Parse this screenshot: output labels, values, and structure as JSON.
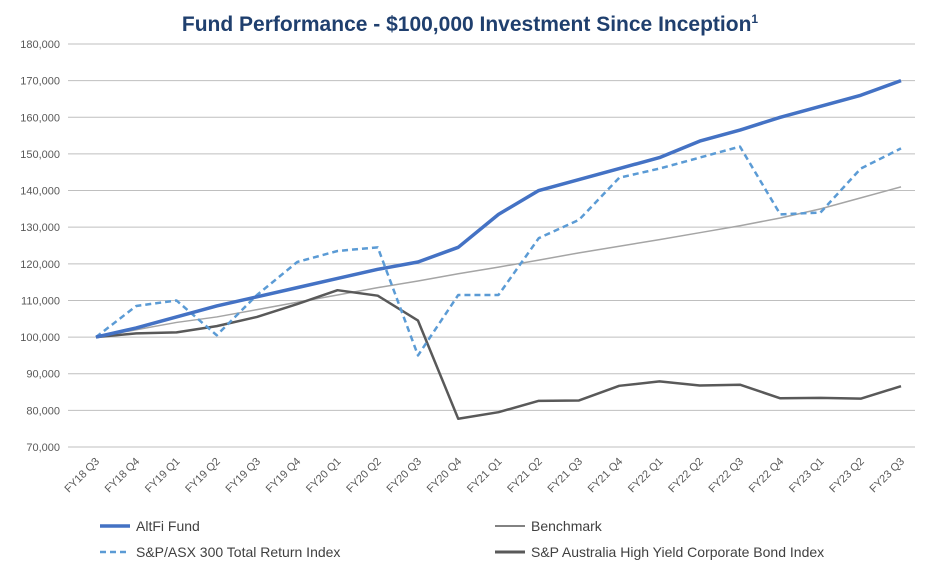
{
  "chart_data": {
    "type": "line",
    "title": "Fund Performance - $100,000 Investment Since Inception",
    "title_superscript": "1",
    "xlabel": "",
    "ylabel": "",
    "ylim": [
      70000,
      180000
    ],
    "yticks": [
      70000,
      80000,
      90000,
      100000,
      110000,
      120000,
      130000,
      140000,
      150000,
      160000,
      170000,
      180000
    ],
    "ytick_labels": [
      "70,000",
      "80,000",
      "90,000",
      "100,000",
      "110,000",
      "120,000",
      "130,000",
      "140,000",
      "150,000",
      "160,000",
      "170,000",
      "180,000"
    ],
    "grid": true,
    "legend_position": "bottom",
    "categories": [
      "FY18 Q3",
      "FY18 Q4",
      "FY19 Q1",
      "FY19 Q2",
      "FY19 Q3",
      "FY19 Q4",
      "FY20 Q1",
      "FY20 Q2",
      "FY20 Q3",
      "FY20 Q4",
      "FY21 Q1",
      "FY21 Q2",
      "FY21 Q3",
      "FY21 Q4",
      "FY22 Q1",
      "FY22 Q2",
      "FY22 Q3",
      "FY22 Q4",
      "FY23 Q1",
      "FY23 Q2",
      "FY23 Q3"
    ],
    "series": [
      {
        "name": "AltFi Fund",
        "color": "#4472c4",
        "style": "solid-thick",
        "values": [
          100000,
          102500,
          105500,
          108500,
          111000,
          113500,
          116000,
          118500,
          120500,
          124500,
          133500,
          140000,
          143000,
          146000,
          149000,
          153500,
          156500,
          160000,
          163000,
          166000,
          170000
        ]
      },
      {
        "name": "Benchmark",
        "color": "#a5a5a5",
        "style": "solid-thin",
        "values": [
          100000,
          102000,
          104000,
          105500,
          107500,
          109500,
          111500,
          113500,
          115300,
          117300,
          119100,
          121000,
          123000,
          124800,
          126600,
          128500,
          130400,
          132500,
          135000,
          138000,
          141000
        ]
      },
      {
        "name": "S&P/ASX 300 Total Return Index",
        "color": "#5b9bd5",
        "style": "dashed",
        "values": [
          100000,
          108500,
          110000,
          100500,
          111500,
          120500,
          123500,
          124500,
          95000,
          111500,
          111500,
          127000,
          132000,
          143500,
          146000,
          149000,
          152000,
          133500,
          134000,
          146000,
          151500
        ]
      },
      {
        "name": "S&P Australia High Yield Corporate Bond Index",
        "color": "#595959",
        "style": "solid",
        "values": [
          100000,
          101000,
          101300,
          103000,
          105500,
          109000,
          112800,
          111300,
          104500,
          77700,
          79500,
          82600,
          82700,
          86700,
          87900,
          86800,
          87000,
          83300,
          83400,
          83200,
          86600
        ]
      }
    ]
  }
}
